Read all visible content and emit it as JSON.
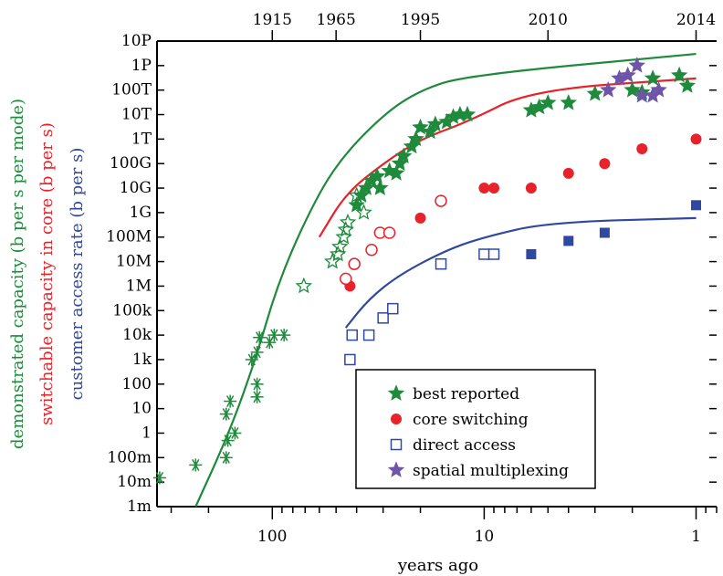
{
  "chart_data": {
    "type": "scatter",
    "xlabel": "years ago",
    "x_scale": "log-reversed",
    "xlim": [
      350,
      0.8
    ],
    "x_ticks": [
      100,
      10,
      1
    ],
    "x_tick_labels": [
      "100",
      "10",
      "1"
    ],
    "top_axis_years": [
      {
        "label": "1915",
        "years_ago": 100
      },
      {
        "label": "1965",
        "years_ago": 50
      },
      {
        "label": "1995",
        "years_ago": 20
      },
      {
        "label": "2010",
        "years_ago": 5
      },
      {
        "label": "2014",
        "years_ago": 1
      }
    ],
    "y_scale": "log",
    "ylim": [
      0.001,
      1e+16
    ],
    "y_tick_labels": [
      "1m",
      "10m",
      "100m",
      "1",
      "10",
      "100",
      "1k",
      "10k",
      "100k",
      "1M",
      "10M",
      "100M",
      "1G",
      "10G",
      "100G",
      "1T",
      "10T",
      "100T",
      "1P",
      "10P"
    ],
    "ylabels": [
      {
        "text": "demonstrated capacity (b per s per mode)",
        "color": "#1f8a3c"
      },
      {
        "text": "switchable capacity in core (b per s)",
        "color": "#e8222a"
      },
      {
        "text": "customer access rate (b per s)",
        "color": "#3049a0"
      }
    ],
    "colors": {
      "green": "#1f8a3c",
      "red": "#e8222a",
      "blue": "#3049a0",
      "purple": "#6e55a8"
    },
    "legend": {
      "placement": "bottom-right",
      "entries": [
        {
          "label": "best reported",
          "marker": "star-filled",
          "color": "#1f8a3c"
        },
        {
          "label": "core switching",
          "marker": "circle-filled",
          "color": "#e8222a"
        },
        {
          "label": "direct access",
          "marker": "square-open",
          "color": "#3049a0"
        },
        {
          "label": "spatial multiplexing",
          "marker": "star-filled",
          "color": "#6e55a8"
        }
      ]
    },
    "series": [
      {
        "marker": "asterisk",
        "color": "#1f8a3c",
        "points": [
          [
            340,
            0.015
          ],
          [
            230,
            0.05
          ],
          [
            165,
            0.1
          ],
          [
            162,
            0.5
          ],
          [
            165,
            6
          ],
          [
            158,
            20
          ],
          [
            150,
            1
          ],
          [
            125,
            1000
          ],
          [
            118,
            2000
          ],
          [
            118,
            30
          ],
          [
            118,
            100
          ],
          [
            115,
            8000
          ],
          [
            103,
            5000
          ],
          [
            98,
            10000
          ],
          [
            88,
            10000
          ]
        ]
      },
      {
        "marker": "star-open",
        "color": "#1f8a3c",
        "points": [
          [
            71,
            1000000
          ],
          [
            52,
            10000000
          ],
          [
            49,
            20000000
          ],
          [
            48,
            40000000
          ],
          [
            46,
            100000000
          ],
          [
            45,
            200000000
          ],
          [
            44,
            400000000
          ],
          [
            40,
            5000000000
          ],
          [
            37,
            1000000000
          ]
        ]
      },
      {
        "marker": "star-filled",
        "color": "#1f8a3c",
        "points": [
          [
            40,
            2000000000
          ],
          [
            38,
            5000000000
          ],
          [
            36,
            10000000000
          ],
          [
            34,
            20000000000
          ],
          [
            32,
            30000000000
          ],
          [
            31,
            10000000000
          ],
          [
            28,
            50000000000
          ],
          [
            26,
            40000000000
          ],
          [
            25,
            100000000000
          ],
          [
            24,
            200000000000
          ],
          [
            22,
            500000000000
          ],
          [
            21,
            1000000000000
          ],
          [
            20,
            3000000000000
          ],
          [
            18,
            2000000000000
          ],
          [
            17,
            4000000000000
          ],
          [
            15,
            5000000000000
          ],
          [
            14,
            8000000000000
          ],
          [
            13,
            10000000000000
          ],
          [
            12,
            10000000000000
          ],
          [
            6,
            15000000000000
          ],
          [
            5.5,
            20000000000000
          ],
          [
            5,
            30000000000000
          ],
          [
            4,
            30000000000000
          ],
          [
            3,
            70000000000000
          ],
          [
            2,
            100000000000000
          ],
          [
            1.8,
            80000000000000
          ],
          [
            1.6,
            300000000000000
          ],
          [
            1.2,
            400000000000000
          ],
          [
            1.1,
            150000000000000
          ]
        ]
      },
      {
        "marker": "circle-filled",
        "color": "#e8222a",
        "points": [
          [
            43,
            1000000
          ],
          [
            20,
            600000000
          ],
          [
            10,
            10000000000
          ],
          [
            9,
            10000000000
          ],
          [
            6,
            10000000000
          ],
          [
            4,
            40000000000
          ],
          [
            2.7,
            100000000000
          ],
          [
            1.8,
            400000000000
          ],
          [
            1,
            1000000000000
          ]
        ]
      },
      {
        "marker": "circle-open",
        "color": "#e8222a",
        "points": [
          [
            45,
            2000000
          ],
          [
            41,
            8000000
          ],
          [
            34,
            30000000
          ],
          [
            31,
            150000000
          ],
          [
            28,
            150000000
          ],
          [
            16,
            3000000000
          ]
        ]
      },
      {
        "marker": "square-open",
        "color": "#3049a0",
        "points": [
          [
            43,
            1000
          ],
          [
            42,
            10000
          ],
          [
            35,
            10000
          ],
          [
            30,
            50000
          ],
          [
            27,
            120000
          ],
          [
            16,
            8000000
          ],
          [
            10,
            20000000
          ],
          [
            9,
            20000000
          ]
        ]
      },
      {
        "marker": "square-filled",
        "color": "#3049a0",
        "points": [
          [
            6,
            20000000
          ],
          [
            4,
            70000000
          ],
          [
            2.7,
            150000000
          ],
          [
            1,
            2000000000
          ]
        ]
      },
      {
        "marker": "star-filled",
        "color": "#6e55a8",
        "points": [
          [
            2.6,
            100000000000000
          ],
          [
            2.3,
            300000000000000
          ],
          [
            2.1,
            400000000000000
          ],
          [
            1.9,
            1000000000000000
          ],
          [
            1.8,
            60000000000000
          ],
          [
            1.6,
            60000000000000
          ],
          [
            1.5,
            100000000000000
          ]
        ]
      }
    ],
    "trend_lines": [
      {
        "color": "#1f8a3c",
        "points": [
          [
            230,
            0.001
          ],
          [
            160,
            1
          ],
          [
            120,
            1000
          ],
          [
            95,
            1000000
          ],
          [
            70,
            500000000
          ],
          [
            50,
            100000000000
          ],
          [
            30,
            10000000000000
          ],
          [
            20,
            100000000000000
          ],
          [
            12,
            400000000000000
          ],
          [
            1,
            3000000000000000
          ]
        ]
      },
      {
        "color": "#e8222a",
        "points": [
          [
            60,
            100000000
          ],
          [
            45,
            6000000000
          ],
          [
            30,
            100000000000
          ],
          [
            20,
            1000000000000
          ],
          [
            12,
            5000000000000
          ],
          [
            6,
            100000000000000
          ],
          [
            1,
            300000000000000
          ]
        ]
      },
      {
        "color": "#3049a0",
        "points": [
          [
            45,
            20000
          ],
          [
            35,
            300000
          ],
          [
            25,
            3000000
          ],
          [
            15,
            30000000
          ],
          [
            10,
            100000000
          ],
          [
            5,
            400000000
          ],
          [
            1,
            600000000
          ]
        ]
      }
    ]
  }
}
